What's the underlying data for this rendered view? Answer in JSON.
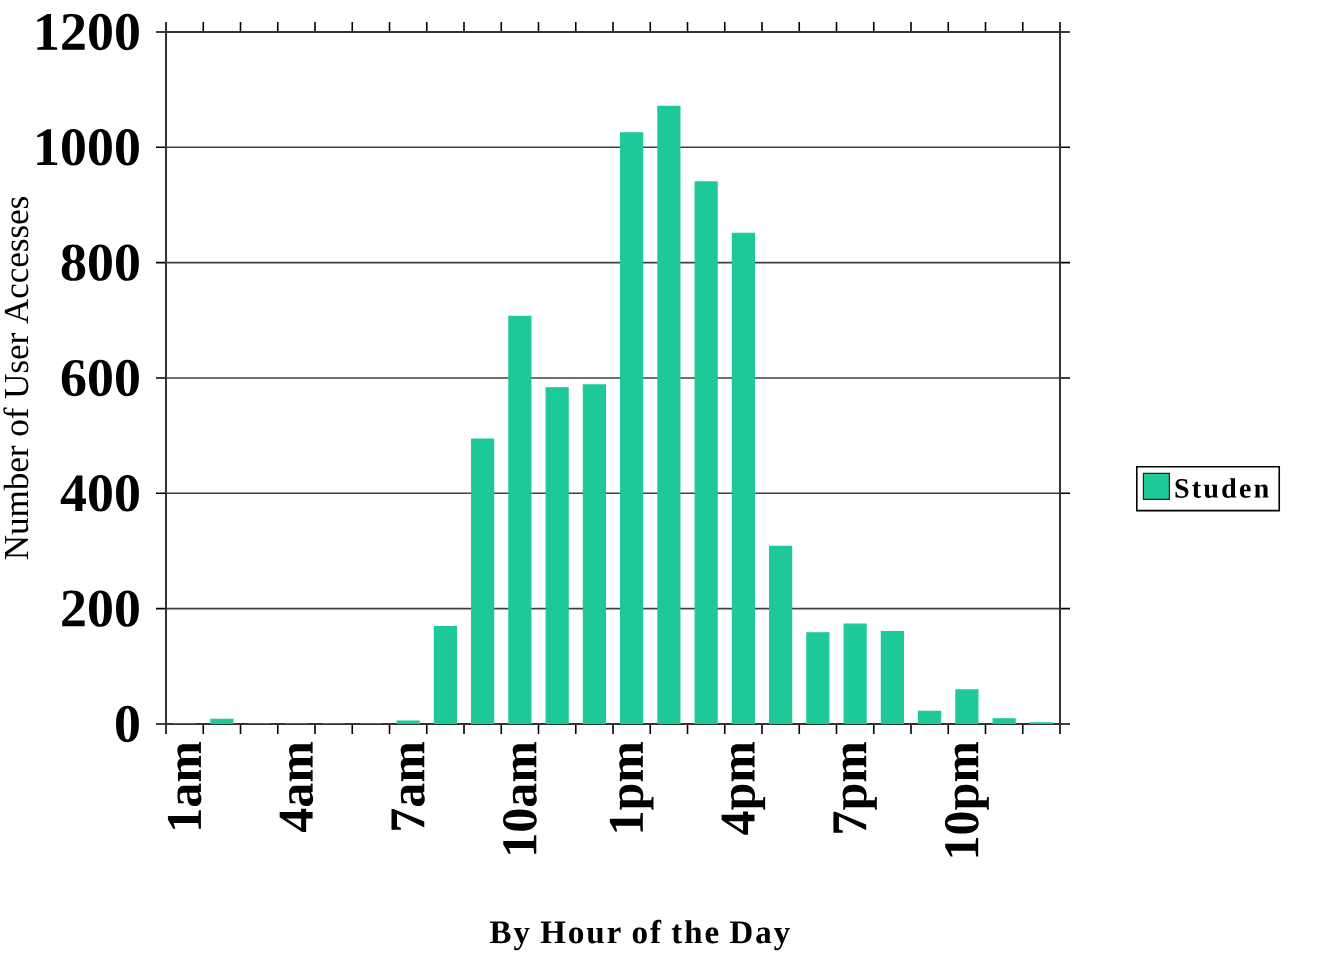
{
  "chart_data": {
    "type": "bar",
    "xlabel": "By Hour of the Day",
    "ylabel": "Number of User Accesses",
    "categories": [
      "1am",
      null,
      null,
      "4am",
      null,
      null,
      "7am",
      null,
      null,
      "10am",
      null,
      null,
      "1pm",
      null,
      null,
      "4pm",
      null,
      null,
      "7pm",
      null,
      null,
      "10pm",
      null,
      null
    ],
    "series": [
      {
        "name": "Studen",
        "color": "#1dc999",
        "values": [
          0,
          8,
          0,
          0,
          0,
          0,
          5,
          169,
          494,
          707,
          583,
          588,
          1025,
          1071,
          940,
          851,
          308,
          158,
          173,
          160,
          22,
          59,
          9,
          2
        ]
      }
    ],
    "ylim": [
      0,
      1200
    ],
    "yticks": [
      0,
      200,
      400,
      600,
      800,
      1000,
      1200
    ],
    "grid": "y",
    "legend": "right"
  }
}
